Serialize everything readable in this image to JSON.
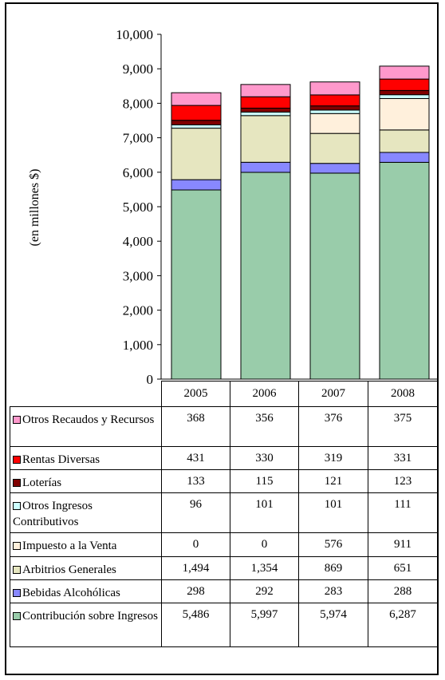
{
  "chart_data": {
    "type": "bar",
    "stacked": true,
    "ylabel": "(en millones $)",
    "ylim": [
      0,
      10000
    ],
    "yticks": [
      "0",
      "1,000",
      "2,000",
      "3,000",
      "4,000",
      "5,000",
      "6,000",
      "7,000",
      "8,000",
      "9,000",
      "10,000"
    ],
    "ytick_values": [
      0,
      1000,
      2000,
      3000,
      4000,
      5000,
      6000,
      7000,
      8000,
      9000,
      10000
    ],
    "categories": [
      "2005",
      "2006",
      "2007",
      "2008"
    ],
    "series": [
      {
        "name": "Contribución sobre Ingresos",
        "color": "#99CCAA",
        "values": [
          5486,
          5997,
          5974,
          6287
        ],
        "labels": [
          "5,486",
          "5,997",
          "5,974",
          "6,287"
        ]
      },
      {
        "name": "Bebidas Alcohólicas",
        "color": "#8888FF",
        "values": [
          298,
          292,
          283,
          288
        ],
        "labels": [
          "298",
          "292",
          "283",
          "288"
        ]
      },
      {
        "name": "Arbitrios Generales",
        "color": "#E6E6C0",
        "values": [
          1494,
          1354,
          869,
          651
        ],
        "labels": [
          "1,494",
          "1,354",
          "869",
          "651"
        ]
      },
      {
        "name": "Impuesto a la Venta",
        "color": "#FFF0DC",
        "values": [
          0,
          0,
          576,
          911
        ],
        "labels": [
          "0",
          "0",
          "576",
          "911"
        ]
      },
      {
        "name": "Otros Ingresos Contributivos",
        "color": "#CCFFFF",
        "values": [
          96,
          101,
          101,
          111
        ],
        "labels": [
          "96",
          "101",
          "101",
          "111"
        ]
      },
      {
        "name": "Loterías",
        "color": "#800000",
        "values": [
          133,
          115,
          121,
          123
        ],
        "labels": [
          "133",
          "115",
          "121",
          "123"
        ]
      },
      {
        "name": "Rentas Diversas",
        "color": "#FF0000",
        "values": [
          431,
          330,
          319,
          331
        ],
        "labels": [
          "431",
          "330",
          "319",
          "331"
        ]
      },
      {
        "name": "Otros Recaudos y Recursos",
        "color": "#FF99CC",
        "values": [
          368,
          356,
          376,
          375
        ],
        "labels": [
          "368",
          "356",
          "376",
          "375"
        ]
      }
    ],
    "grid": false,
    "legend": "table-below"
  }
}
